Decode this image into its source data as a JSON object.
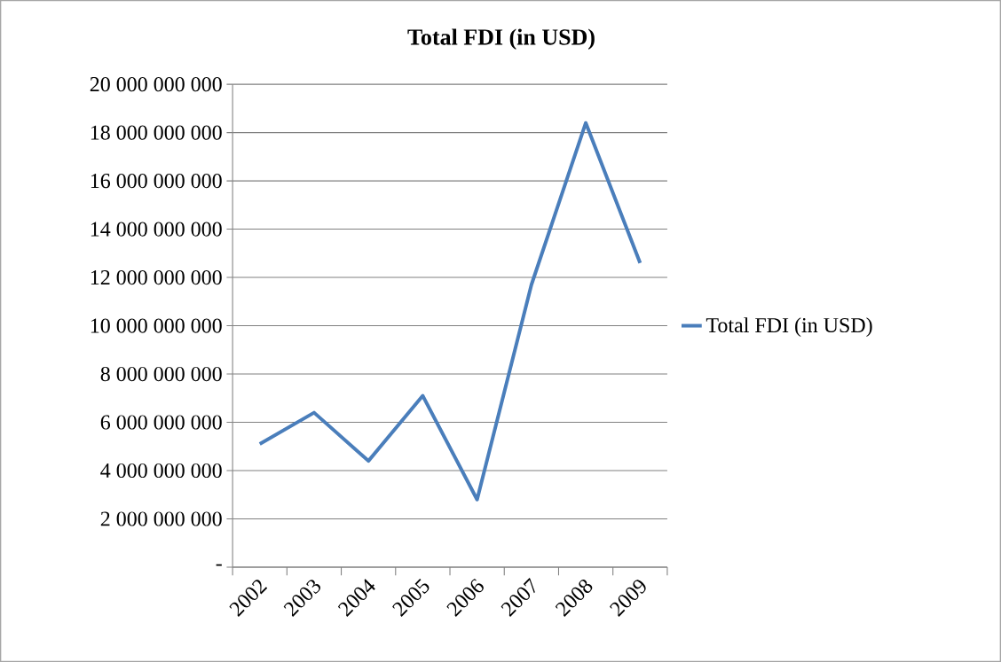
{
  "chart_data": {
    "type": "line",
    "title": "Total FDI (in USD)",
    "categories": [
      "2002",
      "2003",
      "2004",
      "2005",
      "2006",
      "2007",
      "2008",
      "2009"
    ],
    "series": [
      {
        "name": "Total FDI (in USD)",
        "color": "#4a7ebb",
        "values": [
          5100000000,
          6400000000,
          4400000000,
          7100000000,
          2800000000,
          11700000000,
          18400000000,
          12600000000
        ]
      }
    ],
    "ylim": [
      0,
      20000000000
    ],
    "yticks": [
      {
        "value": 0,
        "label": "-"
      },
      {
        "value": 2000000000,
        "label": "2 000 000 000"
      },
      {
        "value": 4000000000,
        "label": "4 000 000 000"
      },
      {
        "value": 6000000000,
        "label": "6 000 000 000"
      },
      {
        "value": 8000000000,
        "label": "8 000 000 000"
      },
      {
        "value": 10000000000,
        "label": "10 000 000 000"
      },
      {
        "value": 12000000000,
        "label": "12 000 000 000"
      },
      {
        "value": 14000000000,
        "label": "14 000 000 000"
      },
      {
        "value": 16000000000,
        "label": "16 000 000 000"
      },
      {
        "value": 18000000000,
        "label": "18 000 000 000"
      },
      {
        "value": 20000000000,
        "label": "20 000 000 000"
      }
    ],
    "grid": "y",
    "legend": "right",
    "marker": "none",
    "line_style": "solid"
  }
}
